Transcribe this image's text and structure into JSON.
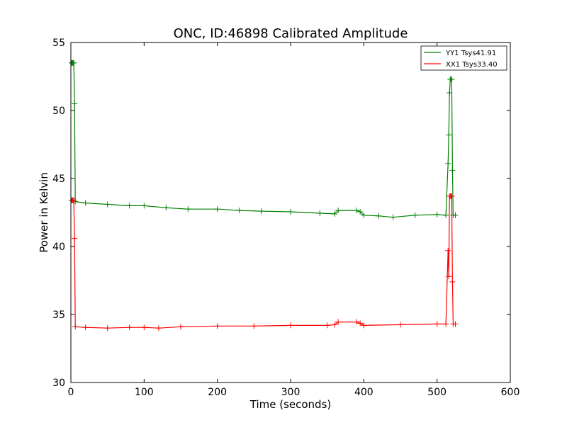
{
  "chart_data": {
    "type": "line",
    "title": "ONC, ID:46898 Calibrated Amplitude",
    "xlabel": "Time (seconds)",
    "ylabel": "Power in Kelvin",
    "xlim": [
      0,
      600
    ],
    "ylim": [
      30,
      55
    ],
    "xticks": [
      "0",
      "100",
      "200",
      "300",
      "400",
      "500",
      "600"
    ],
    "yticks": [
      "30",
      "35",
      "40",
      "45",
      "50",
      "55"
    ],
    "grid": false,
    "legend_position": "top-right",
    "marker": "plus",
    "series": [
      {
        "name": "YY1 Tsys41.91",
        "color": "#008000",
        "points": [
          [
            1,
            53.5
          ],
          [
            2,
            53.5
          ],
          [
            3,
            53.5
          ],
          [
            4,
            53.5
          ],
          [
            5,
            50.5
          ],
          [
            6,
            43.3
          ],
          [
            20,
            43.2
          ],
          [
            50,
            43.1
          ],
          [
            80,
            43.0
          ],
          [
            100,
            43.0
          ],
          [
            130,
            42.85
          ],
          [
            160,
            42.75
          ],
          [
            200,
            42.75
          ],
          [
            230,
            42.65
          ],
          [
            260,
            42.6
          ],
          [
            300,
            42.55
          ],
          [
            340,
            42.45
          ],
          [
            360,
            42.4
          ],
          [
            365,
            42.65
          ],
          [
            390,
            42.65
          ],
          [
            395,
            42.55
          ],
          [
            400,
            42.3
          ],
          [
            420,
            42.25
          ],
          [
            440,
            42.15
          ],
          [
            470,
            42.3
          ],
          [
            500,
            42.35
          ],
          [
            512,
            42.3
          ],
          [
            515,
            46.1
          ],
          [
            516,
            48.2
          ],
          [
            517,
            51.3
          ],
          [
            518,
            52.3
          ],
          [
            519,
            52.3
          ],
          [
            520,
            52.3
          ],
          [
            521,
            45.6
          ],
          [
            522,
            42.3
          ],
          [
            525,
            42.3
          ]
        ]
      },
      {
        "name": "XX1 Tsys33.40",
        "color": "#ff0000",
        "points": [
          [
            1,
            43.4
          ],
          [
            2,
            43.4
          ],
          [
            3,
            43.4
          ],
          [
            4,
            43.4
          ],
          [
            5,
            40.6
          ],
          [
            6,
            34.1
          ],
          [
            20,
            34.05
          ],
          [
            50,
            34.0
          ],
          [
            80,
            34.05
          ],
          [
            100,
            34.05
          ],
          [
            120,
            34.0
          ],
          [
            150,
            34.1
          ],
          [
            200,
            34.15
          ],
          [
            250,
            34.15
          ],
          [
            300,
            34.2
          ],
          [
            350,
            34.2
          ],
          [
            360,
            34.25
          ],
          [
            365,
            34.45
          ],
          [
            390,
            34.45
          ],
          [
            395,
            34.35
          ],
          [
            400,
            34.2
          ],
          [
            450,
            34.25
          ],
          [
            500,
            34.3
          ],
          [
            512,
            34.3
          ],
          [
            515,
            39.7
          ],
          [
            516,
            37.8
          ],
          [
            517,
            43.7
          ],
          [
            518,
            43.7
          ],
          [
            519,
            43.7
          ],
          [
            520,
            43.7
          ],
          [
            521,
            37.4
          ],
          [
            522,
            34.3
          ],
          [
            525,
            34.3
          ]
        ]
      }
    ]
  }
}
